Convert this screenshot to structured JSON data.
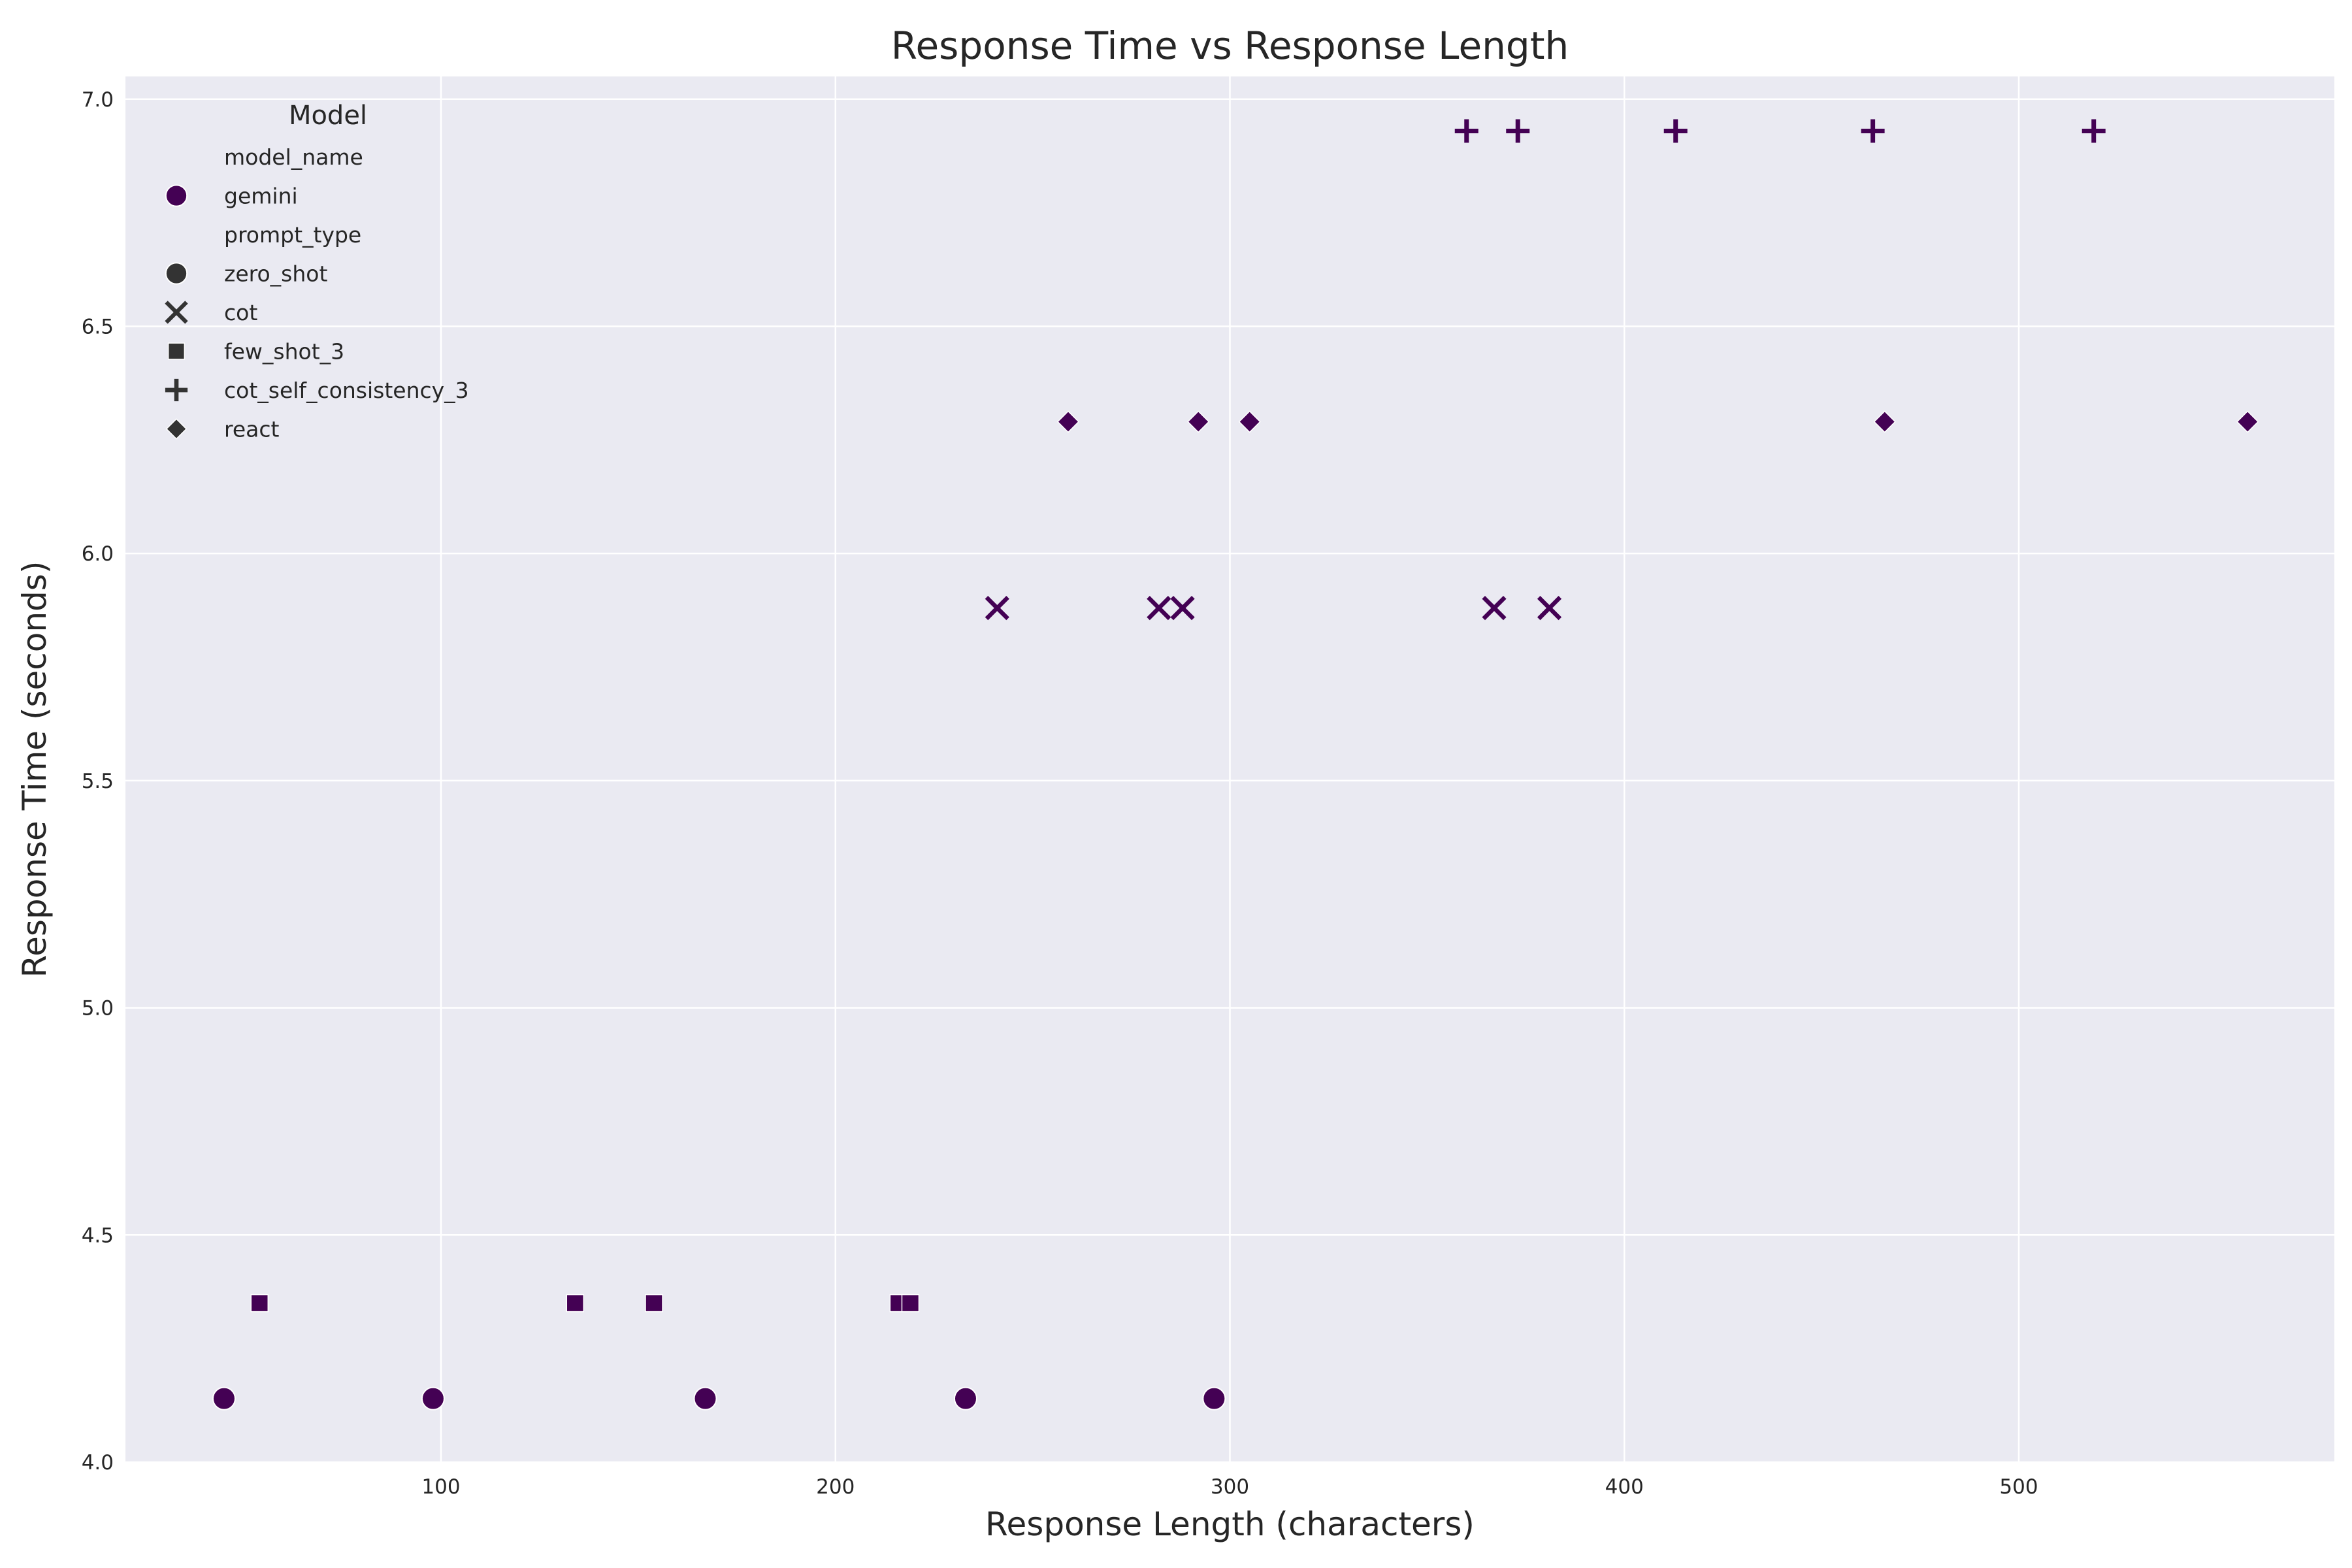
{
  "chart_data": {
    "type": "scatter",
    "title": "Response Time vs Response Length",
    "xlabel": "Response Length (characters)",
    "ylabel": "Response Time (seconds)",
    "xlim": [
      20,
      580
    ],
    "ylim": [
      4.0,
      7.05
    ],
    "xticks": [
      100,
      200,
      300,
      400,
      500
    ],
    "yticks": [
      4.0,
      4.5,
      5.0,
      5.5,
      6.0,
      6.5,
      7.0
    ],
    "grid": true,
    "legend": {
      "title": "Model",
      "placement": "upper-left",
      "entries": [
        {
          "label": "model_name",
          "kind": "header"
        },
        {
          "label": "gemini",
          "kind": "hue",
          "marker": "circle"
        },
        {
          "label": "prompt_type",
          "kind": "header"
        },
        {
          "label": "zero_shot",
          "kind": "style",
          "marker": "circle"
        },
        {
          "label": "cot",
          "kind": "style",
          "marker": "x"
        },
        {
          "label": "few_shot_3",
          "kind": "style",
          "marker": "square"
        },
        {
          "label": "cot_self_consistency_3",
          "kind": "style",
          "marker": "plus"
        },
        {
          "label": "react",
          "kind": "style",
          "marker": "diamond"
        }
      ]
    },
    "colors": {
      "gemini": "#440154",
      "legend_style_marker": "#333333",
      "plot_background": "#eaeaf2",
      "grid": "#ffffff"
    },
    "series": [
      {
        "model": "gemini",
        "prompt_type": "zero_shot",
        "marker": "circle",
        "points": [
          [
            45,
            4.14
          ],
          [
            98,
            4.14
          ],
          [
            167,
            4.14
          ],
          [
            233,
            4.14
          ],
          [
            296,
            4.14
          ]
        ]
      },
      {
        "model": "gemini",
        "prompt_type": "cot",
        "marker": "x",
        "points": [
          [
            241,
            5.88
          ],
          [
            282,
            5.88
          ],
          [
            288,
            5.88
          ],
          [
            367,
            5.88
          ],
          [
            381,
            5.88
          ]
        ]
      },
      {
        "model": "gemini",
        "prompt_type": "few_shot_3",
        "marker": "square",
        "points": [
          [
            54,
            4.35
          ],
          [
            134,
            4.35
          ],
          [
            154,
            4.35
          ],
          [
            216,
            4.35
          ],
          [
            219,
            4.35
          ]
        ]
      },
      {
        "model": "gemini",
        "prompt_type": "cot_self_consistency_3",
        "marker": "plus",
        "points": [
          [
            360,
            6.93
          ],
          [
            373,
            6.93
          ],
          [
            413,
            6.93
          ],
          [
            463,
            6.93
          ],
          [
            519,
            6.93
          ]
        ]
      },
      {
        "model": "gemini",
        "prompt_type": "react",
        "marker": "diamond",
        "points": [
          [
            259,
            6.29
          ],
          [
            292,
            6.29
          ],
          [
            305,
            6.29
          ],
          [
            466,
            6.29
          ],
          [
            558,
            6.29
          ]
        ]
      }
    ]
  }
}
